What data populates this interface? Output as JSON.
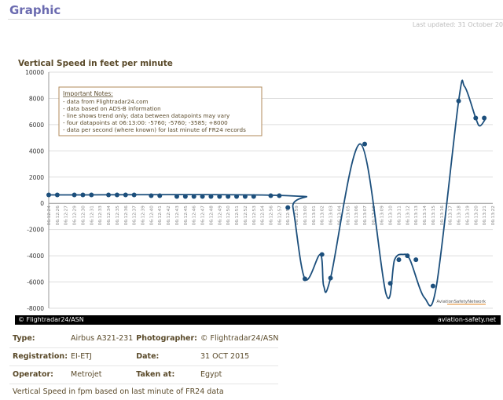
{
  "page": {
    "title": "Graphic",
    "last_updated": "Last updated: 31 October 20"
  },
  "photo": {
    "credit_left": "© Flightradar24/ASN",
    "credit_right": "aviation-safety.net",
    "caption": "Vertical Speed in fpm based on last minute of FR24 data"
  },
  "details": {
    "type_label": "Type:",
    "type_value": "Airbus A321-231",
    "photographer_label": "Photographer:",
    "photographer_value": "© Flightradar24/ASN",
    "registration_label": "Registration:",
    "registration_value": "EI-ETJ",
    "date_label": "Date:",
    "date_value": "31 OCT 2015",
    "operator_label": "Operator:",
    "operator_value": "Metrojet",
    "taken_at_label": "Taken at:",
    "taken_at_value": "Egypt"
  },
  "chart_data": {
    "type": "line",
    "title": "Vertical Speed in feet per minute",
    "xlabel": "",
    "ylabel": "",
    "ylim": [
      -8000,
      10000
    ],
    "yticks": [
      10000,
      8000,
      6000,
      4000,
      2000,
      0,
      -2000,
      -4000,
      -6000,
      -8000
    ],
    "grid": "horizontal",
    "line_color": "#1c4f7c",
    "watermark": "AviationSafetyNetwork",
    "notes": {
      "heading": "Important Notes",
      "lines": [
        "- data from Flightradar24.com",
        "- data based on ADS-B information",
        "- line shows trend only; data between datapoints may vary",
        "- four datapoints at 06:13:00: -5760; -5760; -3585; +8000",
        "- data per second (where known) for last minute of FR24 records"
      ]
    },
    "categories": [
      "06:12:24",
      "06:12:26",
      "06:12:27",
      "06:12:29",
      "06:12:30",
      "06:12:31",
      "06:12:33",
      "06:12:34",
      "06:12:35",
      "06:12:36",
      "06:12:37",
      "06:12:39",
      "06:12:40",
      "06:12:41",
      "06:12:42",
      "06:12:43",
      "06:12:45",
      "06:12:46",
      "06:12:47",
      "06:12:48",
      "06:12:49",
      "06:12:50",
      "06:12:51",
      "06:12:52",
      "06:12:53",
      "06:12:54",
      "06:12:56",
      "06:12:57",
      "06:12:58",
      "06:12:59",
      "06:13:00",
      "06:13:01",
      "06:13:02",
      "06:13:03",
      "06:13:04",
      "06:13:05",
      "06:13:06",
      "06:13:07",
      "06:13:08",
      "06:13:09",
      "06:13:10",
      "06:13:11",
      "06:13:12",
      "06:13:13",
      "06:13:14",
      "06:13:15",
      "06:13:16",
      "06:13:17",
      "06:13:18",
      "06:13:19",
      "06:13:20",
      "06:13:21",
      "06:13:22"
    ],
    "points": [
      {
        "x": 0,
        "y": 640
      },
      {
        "x": 1,
        "y": 640
      },
      {
        "x": 3,
        "y": 640
      },
      {
        "x": 4,
        "y": 640
      },
      {
        "x": 5,
        "y": 640
      },
      {
        "x": 7,
        "y": 640
      },
      {
        "x": 8,
        "y": 640
      },
      {
        "x": 9,
        "y": 640
      },
      {
        "x": 10,
        "y": 640
      },
      {
        "x": 12,
        "y": 580
      },
      {
        "x": 13,
        "y": 580
      },
      {
        "x": 15,
        "y": 520
      },
      {
        "x": 16,
        "y": 520
      },
      {
        "x": 17,
        "y": 520
      },
      {
        "x": 18,
        "y": 520
      },
      {
        "x": 19,
        "y": 520
      },
      {
        "x": 20,
        "y": 520
      },
      {
        "x": 21,
        "y": 520
      },
      {
        "x": 22,
        "y": 520
      },
      {
        "x": 23,
        "y": 520
      },
      {
        "x": 24,
        "y": 520
      },
      {
        "x": 26,
        "y": 580
      },
      {
        "x": 27,
        "y": 580
      },
      {
        "x": 28,
        "y": -320
      },
      {
        "x": 30,
        "y": -5760
      },
      {
        "x": 32,
        "y": -3900
      },
      {
        "x": 33,
        "y": -5700
      },
      {
        "x": 37,
        "y": 4520
      },
      {
        "x": 40,
        "y": -6100
      },
      {
        "x": 41,
        "y": -4300
      },
      {
        "x": 42,
        "y": -4000
      },
      {
        "x": 43,
        "y": -4300
      },
      {
        "x": 45,
        "y": -6300
      },
      {
        "x": 48,
        "y": 7800
      },
      {
        "x": 50,
        "y": 6500
      },
      {
        "x": 51,
        "y": 6500
      }
    ],
    "curve_points": [
      {
        "x": 0,
        "y": 640
      },
      {
        "x": 28,
        "y": 580
      },
      {
        "x": 28.6,
        "y": -320
      },
      {
        "x": 30,
        "y": -5760
      },
      {
        "x": 31.8,
        "y": -3900
      },
      {
        "x": 32.2,
        "y": -6300
      },
      {
        "x": 33,
        "y": -5700
      },
      {
        "x": 36.5,
        "y": 4520
      },
      {
        "x": 39.5,
        "y": -6900
      },
      {
        "x": 40.5,
        "y": -4300
      },
      {
        "x": 41.5,
        "y": -3900
      },
      {
        "x": 42.3,
        "y": -4300
      },
      {
        "x": 44,
        "y": -7200
      },
      {
        "x": 45.4,
        "y": -6300
      },
      {
        "x": 48,
        "y": 7800
      },
      {
        "x": 48.7,
        "y": 8900
      },
      {
        "x": 50,
        "y": 6500
      },
      {
        "x": 50.5,
        "y": 5900
      },
      {
        "x": 51.2,
        "y": 6500
      }
    ]
  }
}
